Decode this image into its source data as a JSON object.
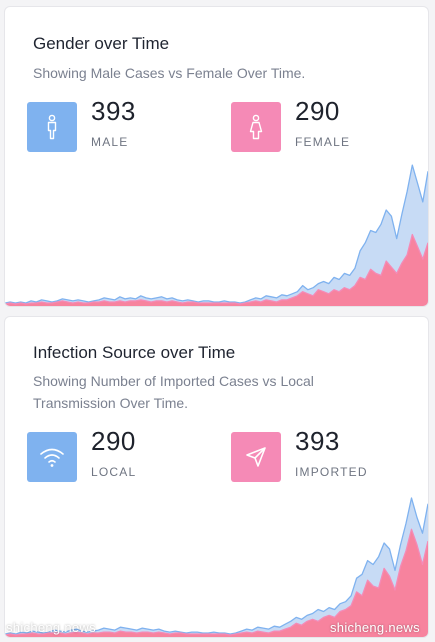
{
  "colors": {
    "male": "#7fb2ef",
    "female": "#f58ab6",
    "male_fill": "#c7dbf5",
    "female_fill": "#f7839e"
  },
  "gender_card": {
    "title": "Gender over Time",
    "subtitle": "Showing Male Cases vs Female Over Time.",
    "stats": [
      {
        "value": "393",
        "label": "MALE",
        "icon": "male-person-icon"
      },
      {
        "value": "290",
        "label": "FEMALE",
        "icon": "female-person-icon"
      }
    ]
  },
  "source_card": {
    "title": "Infection Source over Time",
    "subtitle": "Showing Number of Imported Cases vs Local Transmission Over Time.",
    "stats": [
      {
        "value": "290",
        "label": "LOCAL",
        "icon": "wifi-icon"
      },
      {
        "value": "393",
        "label": "IMPORTED",
        "icon": "send-icon"
      }
    ]
  },
  "watermarks": {
    "left": "shicheng.news",
    "right": "shicheng.news"
  },
  "chart_data": [
    {
      "type": "area",
      "series": [
        {
          "values": [
            1,
            2,
            1,
            2,
            1,
            3,
            2,
            4,
            3,
            2,
            3,
            5,
            4,
            3,
            4,
            3,
            2,
            3,
            4,
            6,
            5,
            4,
            7,
            5,
            6,
            5,
            8,
            6,
            5,
            6,
            7,
            5,
            6,
            4,
            3,
            4,
            3,
            2,
            3,
            3,
            2,
            2,
            3,
            2,
            2,
            1,
            2,
            4,
            6,
            5,
            8,
            7,
            6,
            9,
            8,
            10,
            12,
            18,
            14,
            16,
            20,
            22,
            20,
            26,
            24,
            30,
            28,
            35,
            52,
            60,
            72,
            70,
            78,
            92,
            86,
            64,
            88,
            110,
            136,
            118,
            100,
            130
          ]
        },
        {
          "values": [
            0,
            1,
            0,
            1,
            0,
            1,
            1,
            2,
            1,
            1,
            2,
            3,
            2,
            1,
            2,
            1,
            1,
            2,
            2,
            3,
            2,
            2,
            3,
            2,
            3,
            3,
            4,
            3,
            2,
            3,
            3,
            2,
            3,
            2,
            1,
            2,
            2,
            1,
            1,
            1,
            1,
            1,
            1,
            1,
            1,
            0,
            1,
            2,
            3,
            2,
            4,
            3,
            2,
            4,
            4,
            6,
            8,
            12,
            10,
            8,
            14,
            12,
            10,
            14,
            12,
            16,
            14,
            18,
            26,
            24,
            34,
            30,
            28,
            42,
            36,
            30,
            40,
            48,
            68,
            56,
            44,
            60
          ]
        }
      ]
    },
    {
      "type": "area",
      "series": [
        {
          "values": [
            1,
            2,
            1,
            3,
            2,
            4,
            3,
            2,
            3,
            5,
            4,
            3,
            5,
            6,
            4,
            3,
            4,
            5,
            7,
            6,
            5,
            8,
            7,
            6,
            5,
            7,
            6,
            5,
            6,
            4,
            3,
            4,
            3,
            2,
            3,
            3,
            2,
            2,
            3,
            2,
            2,
            1,
            2,
            4,
            6,
            5,
            8,
            7,
            6,
            9,
            8,
            11,
            14,
            18,
            16,
            20,
            22,
            26,
            24,
            28,
            26,
            32,
            34,
            40,
            58,
            62,
            76,
            72,
            80,
            94,
            88,
            66,
            92,
            114,
            140,
            120,
            104,
            134
          ]
        },
        {
          "values": [
            0,
            1,
            0,
            1,
            1,
            2,
            1,
            1,
            2,
            2,
            2,
            1,
            2,
            3,
            2,
            1,
            2,
            2,
            3,
            3,
            2,
            4,
            3,
            3,
            2,
            3,
            3,
            2,
            3,
            2,
            1,
            2,
            2,
            1,
            1,
            1,
            1,
            1,
            1,
            1,
            1,
            0,
            1,
            2,
            3,
            2,
            4,
            3,
            2,
            4,
            4,
            6,
            8,
            12,
            10,
            14,
            16,
            14,
            18,
            20,
            18,
            24,
            26,
            30,
            44,
            40,
            56,
            50,
            48,
            68,
            60,
            46,
            70,
            86,
            108,
            92,
            72,
            96
          ]
        }
      ]
    }
  ]
}
